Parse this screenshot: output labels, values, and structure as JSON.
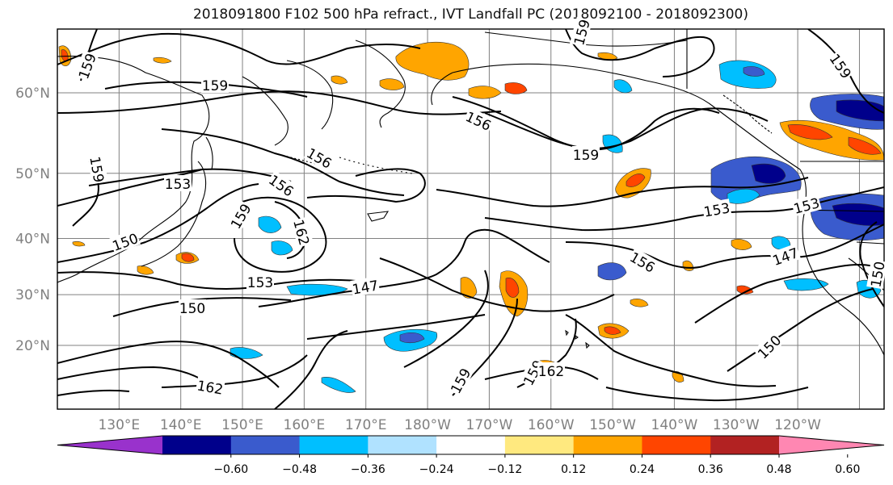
{
  "title": "2018091800 F102 500 hPa refract., IVT Landfall PC (2018092100 - 2018092300)",
  "map": {
    "lat_labels": [
      {
        "text": "60°N",
        "lat": 60
      },
      {
        "text": "50°N",
        "lat": 50
      },
      {
        "text": "40°N",
        "lat": 40
      },
      {
        "text": "30°N",
        "lat": 30
      },
      {
        "text": "20°N",
        "lat": 20
      }
    ],
    "lon_labels": [
      {
        "text": "130°E",
        "lon": 130
      },
      {
        "text": "140°E",
        "lon": 140
      },
      {
        "text": "150°E",
        "lon": 150
      },
      {
        "text": "160°E",
        "lon": 160
      },
      {
        "text": "170°E",
        "lon": 170
      },
      {
        "text": "180°W",
        "lon": 180
      },
      {
        "text": "170°W",
        "lon": 190
      },
      {
        "text": "160°W",
        "lon": 200
      },
      {
        "text": "150°W",
        "lon": 210
      },
      {
        "text": "140°W",
        "lon": 220
      },
      {
        "text": "130°W",
        "lon": 230
      },
      {
        "text": "120°W",
        "lon": 240
      }
    ],
    "contour_labels": [
      "159",
      "159",
      "159",
      "159",
      "159",
      "159",
      "159",
      "159",
      "159",
      "156",
      "156",
      "156",
      "156",
      "153",
      "153",
      "153",
      "153",
      "150",
      "150",
      "150",
      "150",
      "147",
      "147",
      "162",
      "162",
      "162"
    ],
    "colors": {
      "contour": "#000000",
      "grid": "#808080",
      "coast": "#000000"
    }
  },
  "colorbar": {
    "levels": [
      "−0.60",
      "−0.48",
      "−0.36",
      "−0.24",
      "−0.12",
      "0.12",
      "0.24",
      "0.36",
      "0.48",
      "0.60"
    ],
    "colors": [
      "#9932cc",
      "#00008b",
      "#3a5bcd",
      "#00bfff",
      "#b0e2ff",
      "#ffffff",
      "#ffe97f",
      "#ffa500",
      "#ff4500",
      "#b22222",
      "#ff87b2"
    ]
  }
}
